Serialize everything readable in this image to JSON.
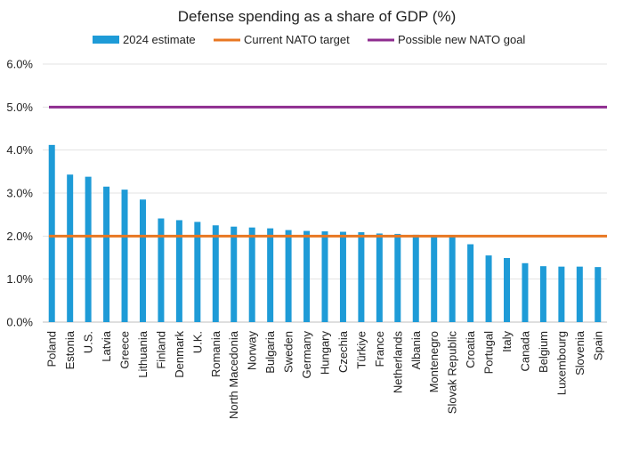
{
  "chart_data": {
    "type": "bar",
    "title": "Defense spending as a share of GDP (%)",
    "xlabel": "",
    "ylabel": "",
    "ylim": [
      0,
      6
    ],
    "yticks": [
      "0.0%",
      "1.0%",
      "2.0%",
      "3.0%",
      "4.0%",
      "5.0%",
      "6.0%"
    ],
    "grid": true,
    "legend_position": "top",
    "categories": [
      "Poland",
      "Estonia",
      "U.S.",
      "Latvia",
      "Greece",
      "Lithuania",
      "Finland",
      "Denmark",
      "U.K.",
      "Romania",
      "North Macedonia",
      "Norway",
      "Bulgaria",
      "Sweden",
      "Germany",
      "Hungary",
      "Czechia",
      "Türkiye",
      "France",
      "Netherlands",
      "Albania",
      "Montenegro",
      "Slovak Republic",
      "Croatia",
      "Portugal",
      "Italy",
      "Canada",
      "Belgium",
      "Luxembourg",
      "Slovenia",
      "Spain"
    ],
    "series": [
      {
        "name": "2024 estimate",
        "color": "#1E9BD7",
        "values": [
          4.12,
          3.43,
          3.38,
          3.15,
          3.08,
          2.85,
          2.41,
          2.37,
          2.33,
          2.25,
          2.22,
          2.2,
          2.18,
          2.14,
          2.12,
          2.11,
          2.1,
          2.09,
          2.06,
          2.05,
          2.03,
          2.02,
          2.0,
          1.81,
          1.55,
          1.49,
          1.37,
          1.3,
          1.29,
          1.29,
          1.28
        ]
      }
    ],
    "reference_lines": [
      {
        "name": "Current NATO target",
        "value": 2.0,
        "color": "#E87722"
      },
      {
        "name": "Possible new NATO goal",
        "value": 5.0,
        "color": "#8E2C8F"
      }
    ]
  }
}
